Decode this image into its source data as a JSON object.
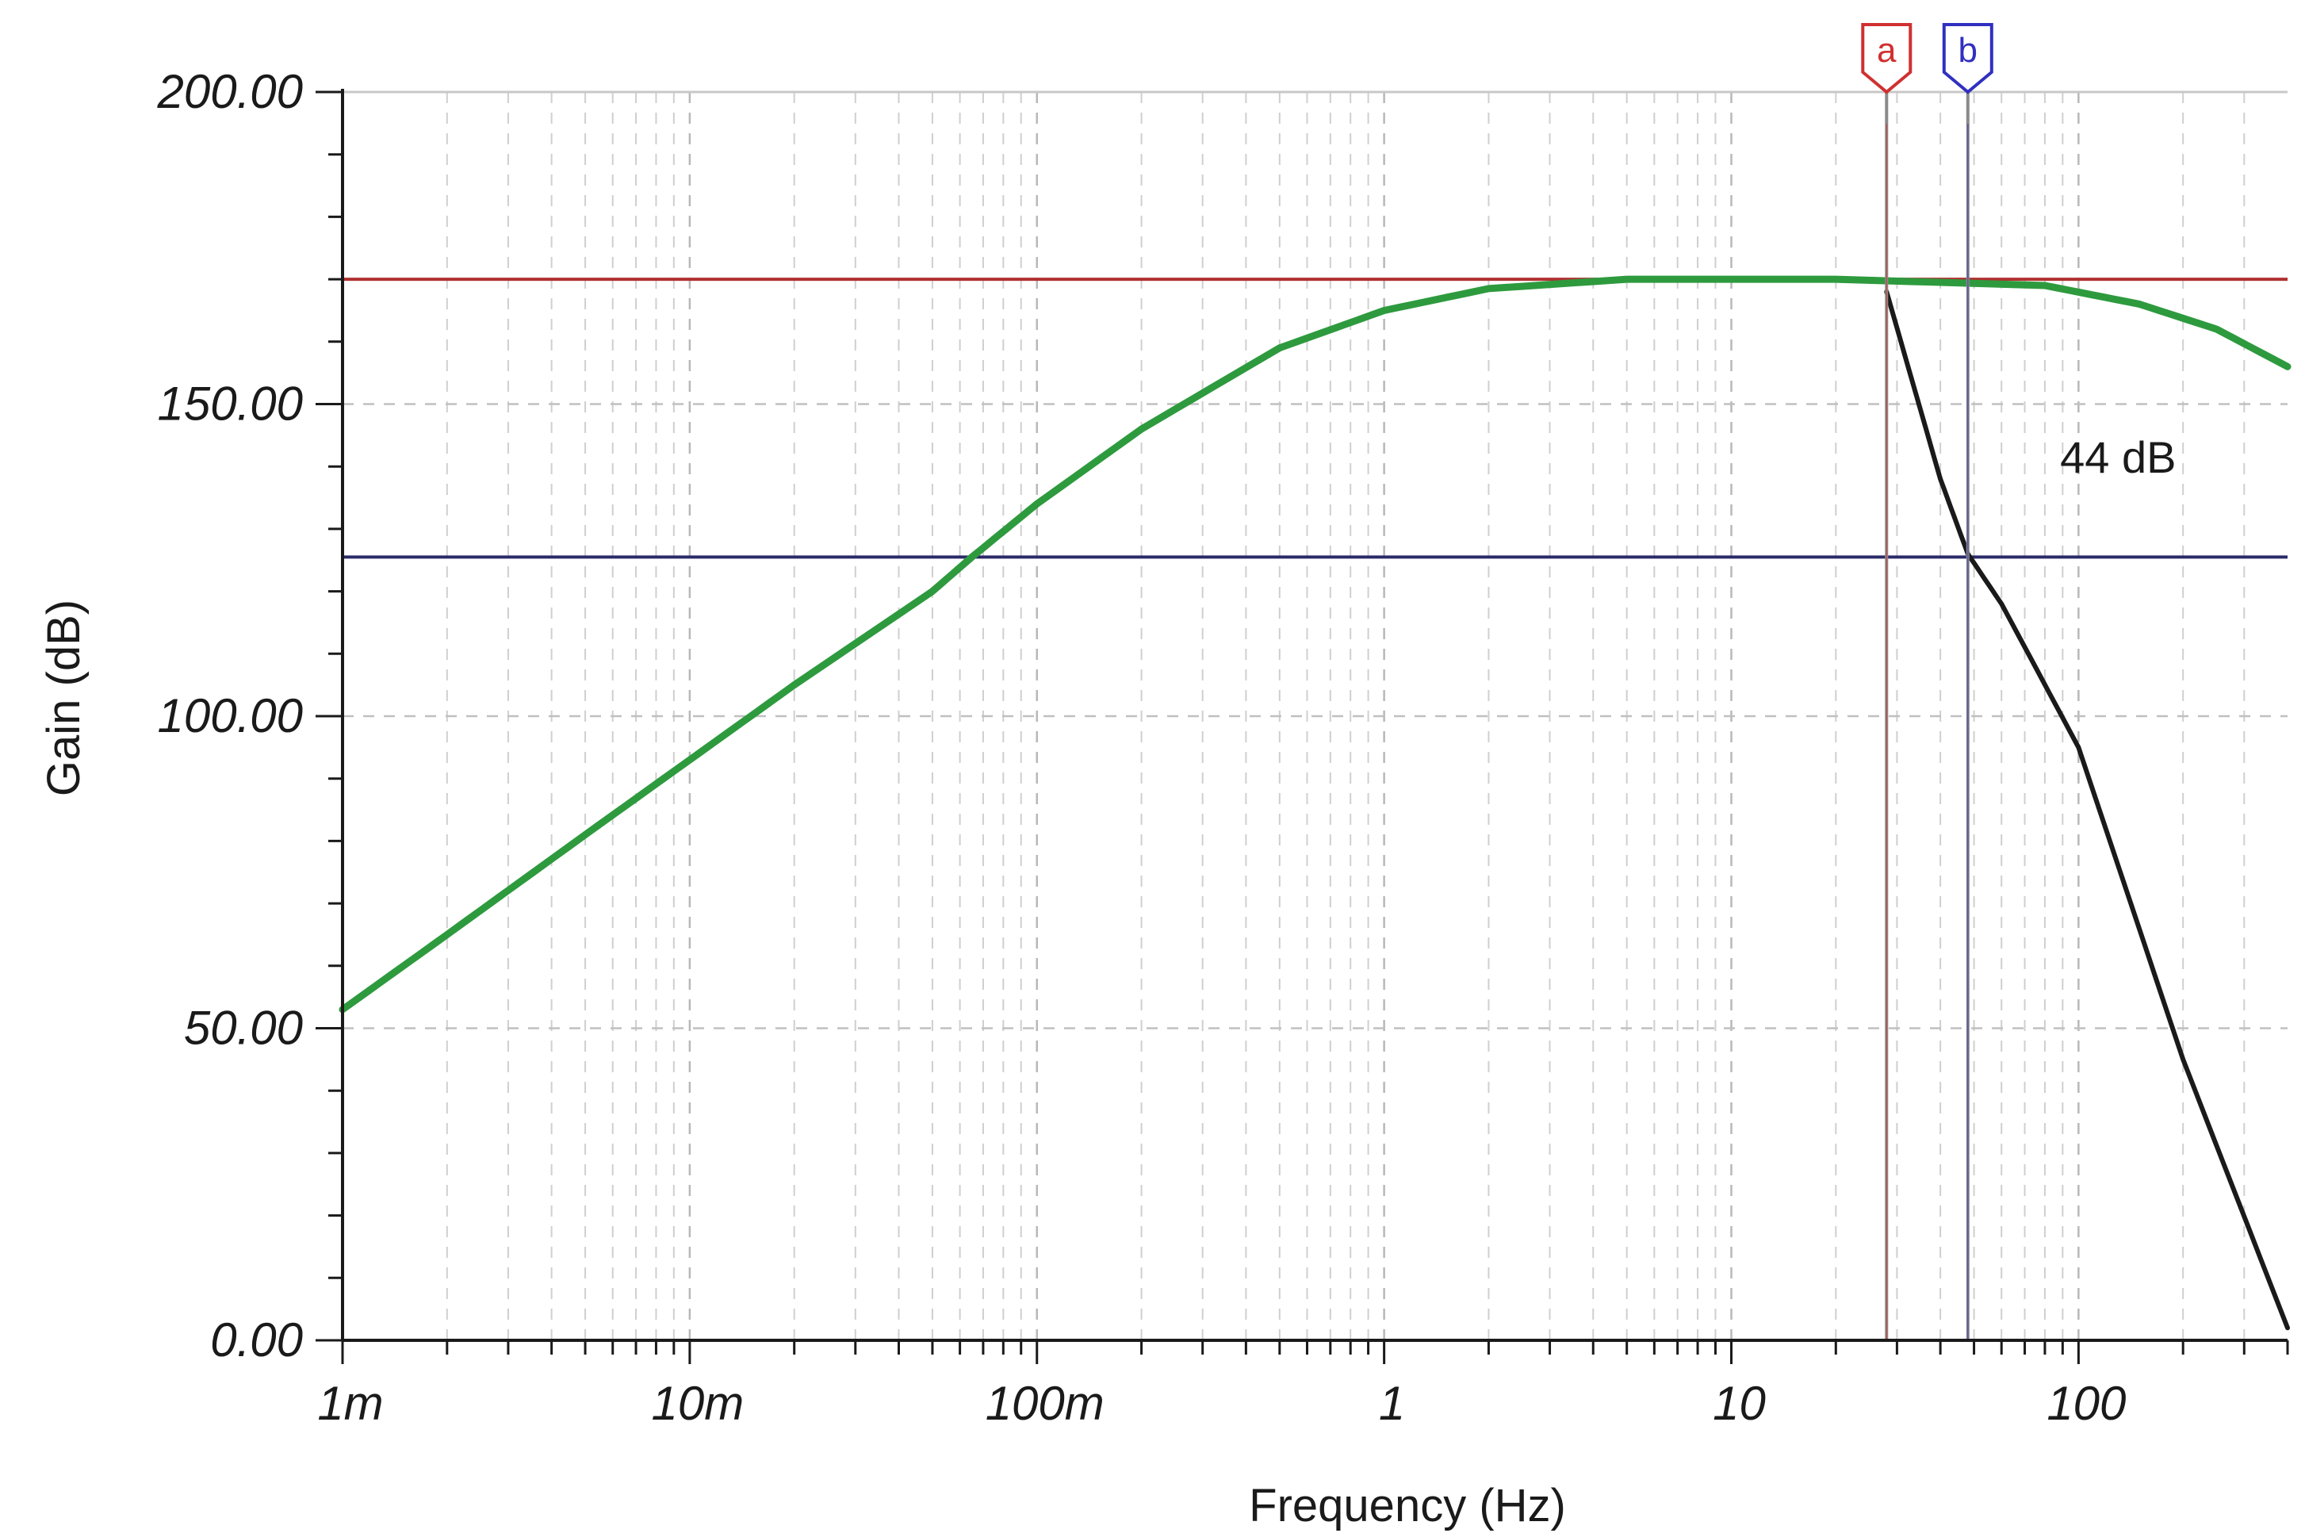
{
  "chart_data": {
    "type": "line",
    "title": "",
    "xlabel": "Frequency (Hz)",
    "ylabel": "Gain (dB)",
    "x_scale": "log",
    "xlim": [
      0.001,
      400
    ],
    "ylim": [
      0,
      200
    ],
    "grid": true,
    "x_tick_values": [
      0.001,
      0.01,
      0.1,
      1,
      10,
      100
    ],
    "x_tick_labels": [
      "1m",
      "10m",
      "100m",
      "1",
      "10",
      "100"
    ],
    "y_tick_values": [
      0,
      50,
      100,
      150,
      200
    ],
    "y_tick_labels": [
      "0.00",
      "50.00",
      "100.00",
      "150.00",
      "200.00"
    ],
    "reference_lines": [
      {
        "axis": "y",
        "value": 170,
        "color": "#b03030"
      },
      {
        "axis": "y",
        "value": 125.5,
        "color": "#2a2a6a"
      }
    ],
    "cursors": [
      {
        "label": "a",
        "x": 28,
        "color": "#d03030"
      },
      {
        "label": "b",
        "x": 48,
        "color": "#3030c0"
      }
    ],
    "annotations": [
      {
        "text": "44 dB",
        "x": 130,
        "y": 139
      }
    ],
    "series": [
      {
        "color": "#2e9a3e",
        "x": [
          0.001,
          0.002,
          0.005,
          0.01,
          0.02,
          0.05,
          0.065,
          0.1,
          0.2,
          0.5,
          1,
          2,
          5,
          10,
          20,
          40,
          80,
          150,
          250,
          400
        ],
        "y": [
          53,
          65,
          81,
          93,
          105,
          120,
          125.5,
          134,
          146,
          159,
          165,
          168.5,
          170,
          170,
          170,
          169.5,
          169,
          166,
          162,
          156
        ]
      },
      {
        "color": "#1a1a1a",
        "x": [
          28,
          40,
          48,
          60,
          100,
          200,
          400
        ],
        "y": [
          168,
          138,
          126,
          118,
          95,
          45,
          2
        ]
      }
    ]
  }
}
